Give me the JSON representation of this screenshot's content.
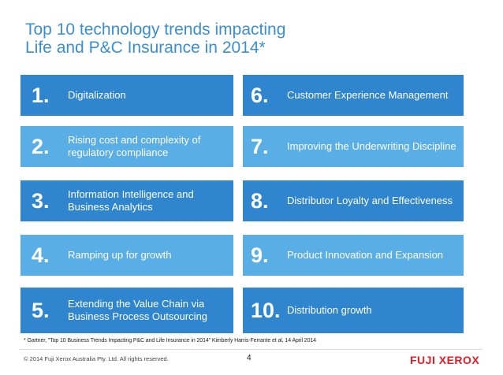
{
  "title_line1": "Top 10 technology trends impacting",
  "title_line2": "Life and P&C Insurance in 2014*",
  "trends": [
    {
      "num": "1.",
      "label": "Digitalization"
    },
    {
      "num": "2.",
      "label": "Rising cost and complexity of regulatory compliance"
    },
    {
      "num": "3.",
      "label": "Information Intelligence and Business Analytics"
    },
    {
      "num": "4.",
      "label": "Ramping up for growth"
    },
    {
      "num": "5.",
      "label": "Extending the Value Chain via Business Process Outsourcing"
    },
    {
      "num": "6.",
      "label": "Customer Experience Management"
    },
    {
      "num": "7.",
      "label": "Improving the Underwriting Discipline"
    },
    {
      "num": "8.",
      "label": "Distributor Loyalty and Effectiveness"
    },
    {
      "num": "9.",
      "label": "Product Innovation and Expansion"
    },
    {
      "num": "10.",
      "label": "Distribution growth"
    }
  ],
  "footnote": "* Gartner, \"Top 10 Business Trends Impacting P&C and Life Insurance in 2014\" Kimberly Harris-Ferrante et al, 14 April 2014",
  "copyright": "© 2014 Fuji Xerox Australia Pty. Ltd. All rights reserved.",
  "page_number": "4",
  "logo_text": "FUJI XEROX",
  "colors": {
    "title": "#3b8fd1",
    "tile_shades": [
      "#2f86cf",
      "#5aaee6",
      "#2f86cf",
      "#5aaee6",
      "#2f86cf"
    ],
    "logo": "#e31b23"
  }
}
